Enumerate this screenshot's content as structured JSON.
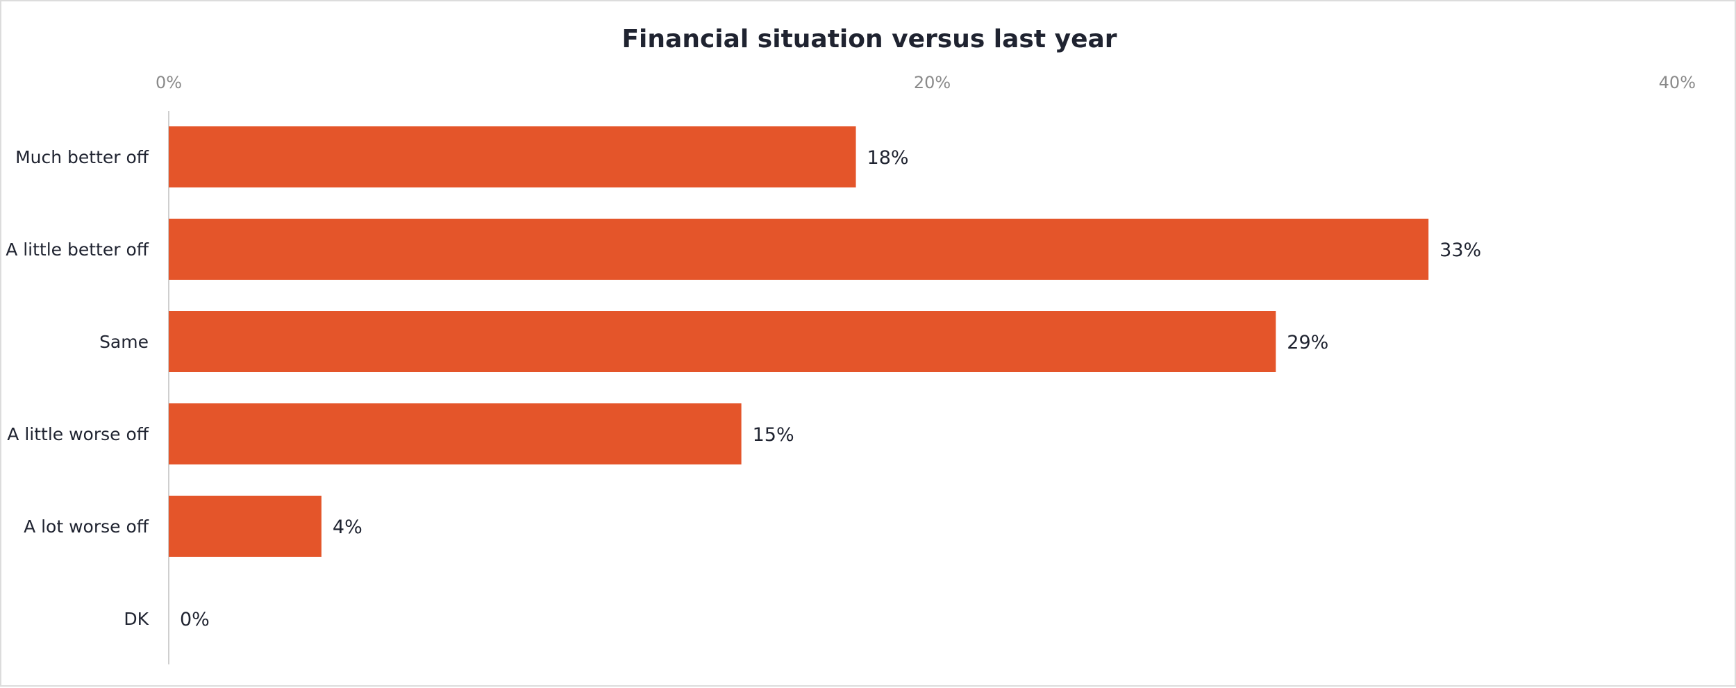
{
  "chart_data": {
    "type": "bar",
    "orientation": "horizontal",
    "title": "Financial situation versus last year",
    "categories": [
      "Much better off",
      "A little better off",
      "Same",
      "A little worse off",
      "A lot worse off",
      "DK"
    ],
    "values": [
      18,
      33,
      29,
      15,
      4,
      0
    ],
    "value_labels": [
      "18%",
      "33%",
      "29%",
      "15%",
      "4%",
      "0%"
    ],
    "x_ticks": [
      0,
      20,
      40
    ],
    "x_tick_labels": [
      "0%",
      "20%",
      "40%"
    ],
    "xlim": [
      0,
      40
    ],
    "x_axis_position": "top",
    "grid": false,
    "bar_color": "#E4552A"
  }
}
